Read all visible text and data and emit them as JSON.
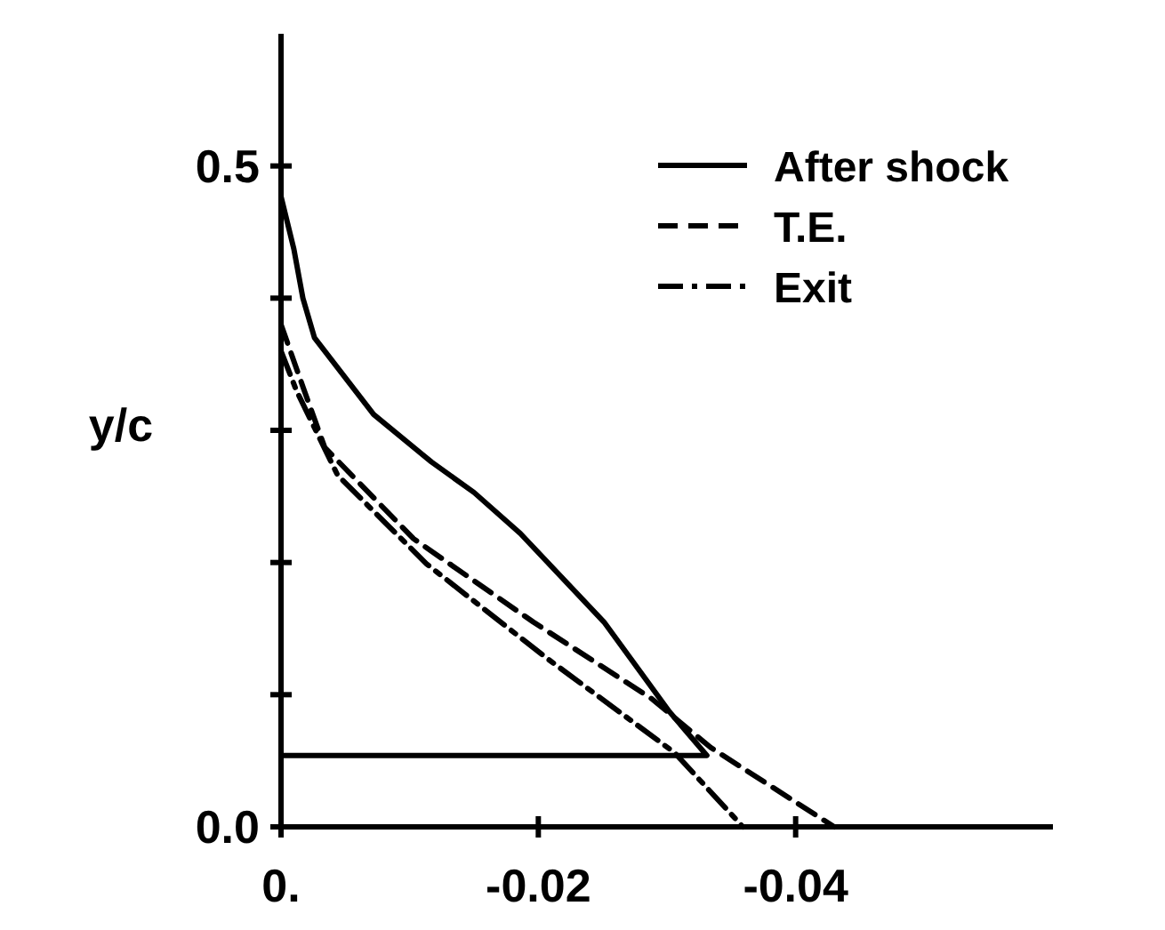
{
  "chart_data": {
    "type": "line",
    "ylabel": "y/c",
    "xlim": [
      0,
      -0.06
    ],
    "ylim": [
      0,
      0.6
    ],
    "xticks": [
      {
        "value": 0,
        "label": "0."
      },
      {
        "value": -0.02,
        "label": "-0.02"
      },
      {
        "value": -0.04,
        "label": "-0.04"
      }
    ],
    "yticks": [
      {
        "value": 0,
        "label": "0.0"
      },
      {
        "value": 0.1,
        "label": null
      },
      {
        "value": 0.2,
        "label": null
      },
      {
        "value": 0.3,
        "label": null
      },
      {
        "value": 0.4,
        "label": null
      },
      {
        "value": 0.5,
        "label": "0.5"
      }
    ],
    "grid": false,
    "legend": "top right",
    "marker": "none",
    "series": [
      {
        "name": "After shock",
        "color": "#000000",
        "line_style": "solid",
        "x": [
          0,
          -0.001,
          -0.0017,
          -0.0026,
          -0.0072,
          -0.0117,
          -0.015,
          -0.0186,
          -0.0251,
          -0.0302,
          -0.0331,
          0
        ],
        "values": [
          0.477,
          0.437,
          0.4,
          0.37,
          0.312,
          0.276,
          0.253,
          0.222,
          0.155,
          0.087,
          0.054,
          0.054
        ]
      },
      {
        "name": "T.E.",
        "color": "#000000",
        "line_style": "dashed",
        "x": [
          0,
          -0.0017,
          -0.0034,
          -0.0103,
          -0.0196,
          -0.0288,
          -0.0334,
          -0.043
        ],
        "values": [
          0.38,
          0.333,
          0.287,
          0.218,
          0.155,
          0.097,
          0.06,
          0
        ]
      },
      {
        "name": "Exit",
        "color": "#000000",
        "line_style": "dashdot",
        "x": [
          0,
          -0.0012,
          -0.0044,
          -0.0113,
          -0.0206,
          -0.0306,
          -0.0359
        ],
        "values": [
          0.36,
          0.33,
          0.266,
          0.199,
          0.128,
          0.056,
          0
        ]
      }
    ]
  }
}
